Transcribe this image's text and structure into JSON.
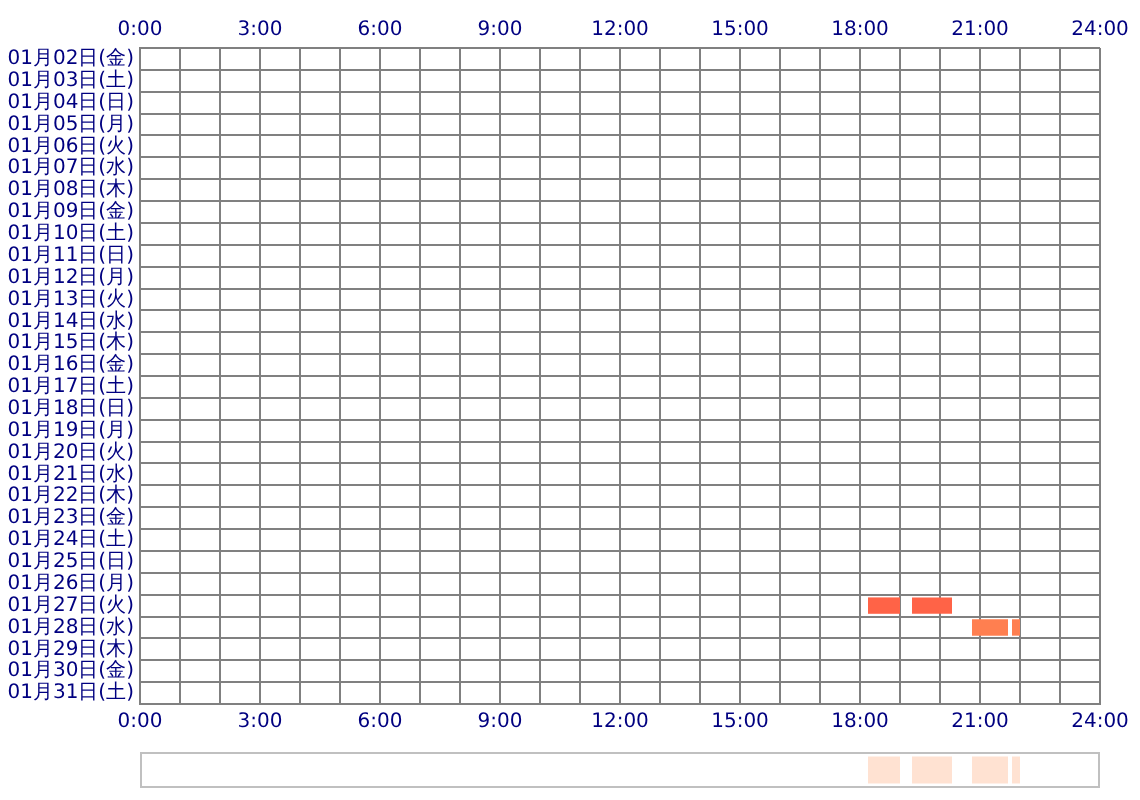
{
  "chart_data": [
    {
      "type": "bar",
      "orientation": "horizontal",
      "categories": [
        "01月02日(金)",
        "01月03日(土)",
        "01月04日(日)",
        "01月05日(月)",
        "01月06日(火)",
        "01月07日(水)",
        "01月08日(木)",
        "01月09日(金)",
        "01月10日(土)",
        "01月11日(日)",
        "01月12日(月)",
        "01月13日(火)",
        "01月14日(水)",
        "01月15日(木)",
        "01月16日(金)",
        "01月17日(土)",
        "01月18日(日)",
        "01月19日(月)",
        "01月20日(火)",
        "01月21日(水)",
        "01月22日(木)",
        "01月23日(金)",
        "01月24日(土)",
        "01月25日(日)",
        "01月26日(月)",
        "01月27日(火)",
        "01月28日(水)",
        "01月29日(木)",
        "01月30日(金)",
        "01月31日(土)"
      ],
      "series": [
        {
          "colors": [
            "#ff6347",
            "#ff6347",
            "#ff6347",
            "#ff6347",
            "#ff6347",
            "#ff6347",
            "#ff6347",
            "#ff6347",
            "#ff6347",
            "#ff6347",
            "#ff6347",
            "#ff6347",
            "#ff6347",
            "#ff6347",
            "#ff6347",
            "#ff6347",
            "#ff6347",
            "#ff6347",
            "#ff6347",
            "#ff6347",
            "#ff6347",
            "#ff6347",
            "#ff6347",
            "#ff6347",
            "#ff6347",
            "#ff6347",
            "#ff7f50",
            "#ff7f50",
            "#ff7f50",
            "#ff7f50"
          ],
          "base": [
            null,
            null,
            null,
            null,
            null,
            null,
            null,
            null,
            null,
            null,
            null,
            null,
            null,
            null,
            null,
            null,
            null,
            null,
            null,
            null,
            null,
            null,
            null,
            null,
            null,
            18.2,
            20.8,
            null,
            null,
            null
          ],
          "values": [
            null,
            null,
            null,
            null,
            null,
            null,
            null,
            null,
            null,
            null,
            null,
            null,
            null,
            null,
            null,
            null,
            null,
            null,
            null,
            null,
            null,
            null,
            null,
            null,
            null,
            0.8,
            0.9,
            null,
            null,
            null
          ]
        },
        {
          "colors": [
            "#ff6347",
            "#ff6347",
            "#ff6347",
            "#ff6347",
            "#ff6347",
            "#ff6347",
            "#ff6347",
            "#ff6347",
            "#ff6347",
            "#ff6347",
            "#ff6347",
            "#ff6347",
            "#ff6347",
            "#ff6347",
            "#ff6347",
            "#ff6347",
            "#ff6347",
            "#ff6347",
            "#ff6347",
            "#ff6347",
            "#ff6347",
            "#ff6347",
            "#ff6347",
            "#ff6347",
            "#ff6347",
            "#ff6347",
            "#ff7f50",
            "#ff7f50",
            "#ff7f50",
            "#ff7f50"
          ],
          "base": [
            null,
            null,
            null,
            null,
            null,
            null,
            null,
            null,
            null,
            null,
            null,
            null,
            null,
            null,
            null,
            null,
            null,
            null,
            null,
            null,
            null,
            null,
            null,
            null,
            null,
            19.3,
            21.8,
            null,
            null,
            null
          ],
          "values": [
            null,
            null,
            null,
            null,
            null,
            null,
            null,
            null,
            null,
            null,
            null,
            null,
            null,
            null,
            null,
            null,
            null,
            null,
            null,
            null,
            null,
            null,
            null,
            null,
            null,
            1.0,
            0.2,
            null,
            null,
            null
          ]
        }
      ],
      "xlim": [
        0,
        24
      ],
      "xticks": [
        {
          "value": 0,
          "label": "0:00"
        },
        {
          "value": 1,
          "label": null
        },
        {
          "value": 2,
          "label": null
        },
        {
          "value": 3,
          "label": "3:00"
        },
        {
          "value": 4,
          "label": null
        },
        {
          "value": 5,
          "label": null
        },
        {
          "value": 6,
          "label": "6:00"
        },
        {
          "value": 7,
          "label": null
        },
        {
          "value": 8,
          "label": null
        },
        {
          "value": 9,
          "label": "9:00"
        },
        {
          "value": 10,
          "label": null
        },
        {
          "value": 11,
          "label": null
        },
        {
          "value": 12,
          "label": "12:00"
        },
        {
          "value": 13,
          "label": null
        },
        {
          "value": 14,
          "label": null
        },
        {
          "value": 15,
          "label": "15:00"
        },
        {
          "value": 16,
          "label": null
        },
        {
          "value": 17,
          "label": null
        },
        {
          "value": 18,
          "label": "18:00"
        },
        {
          "value": 19,
          "label": null
        },
        {
          "value": 20,
          "label": null
        },
        {
          "value": 21,
          "label": "21:00"
        },
        {
          "value": 22,
          "label": null
        },
        {
          "value": 23,
          "label": null
        },
        {
          "value": 24,
          "label": "24:00"
        }
      ],
      "x2lim": [
        0,
        24
      ],
      "x2ticks": [
        {
          "value": 0,
          "label": "0:00"
        },
        {
          "value": 3,
          "label": "3:00"
        },
        {
          "value": 6,
          "label": "6:00"
        },
        {
          "value": 9,
          "label": "9:00"
        },
        {
          "value": 12,
          "label": "12:00"
        },
        {
          "value": 15,
          "label": "15:00"
        },
        {
          "value": 18,
          "label": "18:00"
        },
        {
          "value": 21,
          "label": "21:00"
        },
        {
          "value": 24,
          "label": "24:00"
        }
      ],
      "grid": true
    },
    {
      "type": "bar",
      "orientation": "horizontal",
      "categories": [
        null
      ],
      "series": [
        {
          "color": "#ffe2d2",
          "base": [
            18.2
          ],
          "values": [
            0.8
          ]
        },
        {
          "color": "#ffe2d2",
          "base": [
            19.3
          ],
          "values": [
            1.0
          ]
        },
        {
          "color": "#ffe2d2",
          "base": [
            20.8
          ],
          "values": [
            0.9
          ]
        },
        {
          "color": "#ffe2d2",
          "base": [
            21.8
          ],
          "values": [
            0.2
          ]
        }
      ],
      "xlim": [
        0,
        24
      ],
      "tick_labels": false
    }
  ]
}
